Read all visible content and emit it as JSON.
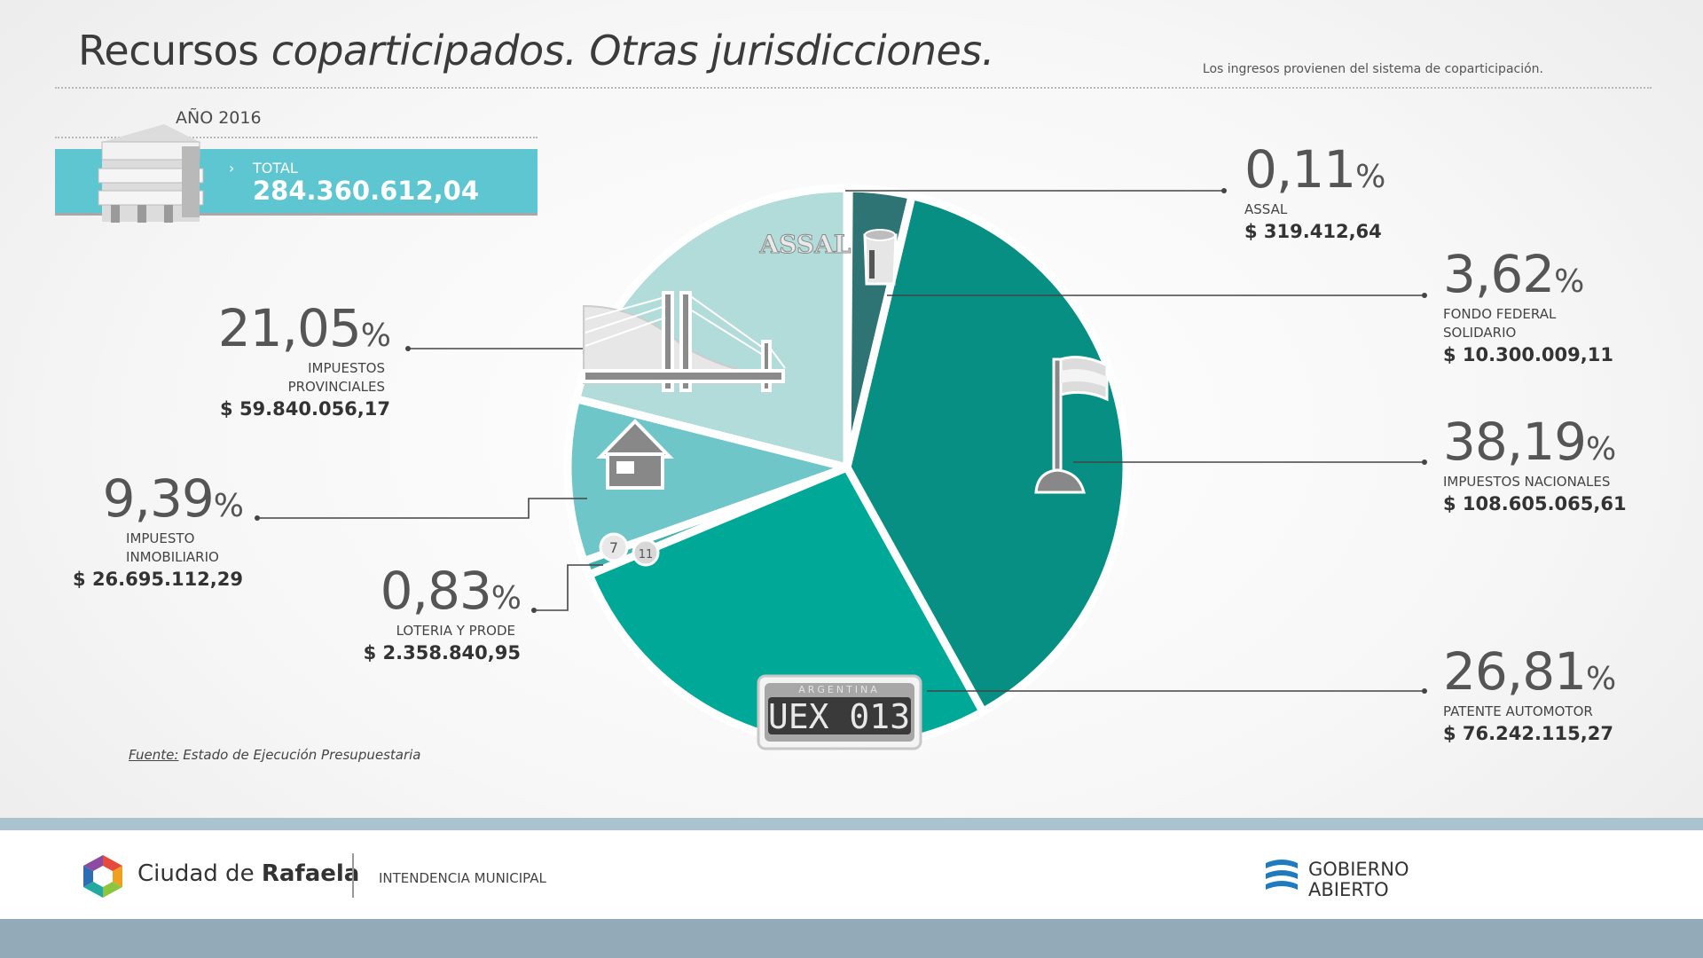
{
  "header": {
    "title_plain": "Recursos ",
    "title_italic": "coparticipados. Otras jurisdicciones.",
    "subtitle": "Los ingresos provienen del sistema de coparticipación."
  },
  "summary": {
    "year": "AÑO 2016",
    "total_label": "TOTAL",
    "total_value": "284.360.612,04"
  },
  "chart_data": {
    "type": "pie",
    "slices": [
      {
        "label": "ASSAL",
        "percent": 0.11,
        "percent_text": "0,11",
        "amount": "$ 319.412,64",
        "color": "#2e4a4f"
      },
      {
        "label": "FONDO FEDERAL SOLIDARIO",
        "percent": 3.62,
        "percent_text": "3,62",
        "amount": "$ 10.300.009,11",
        "color": "#2f7474"
      },
      {
        "label": "IMPUESTOS NACIONALES",
        "percent": 38.19,
        "percent_text": "38,19",
        "amount": "$ 108.605.065,61",
        "color": "#068f82"
      },
      {
        "label": "PATENTE AUTOMOTOR",
        "percent": 26.81,
        "percent_text": "26,81",
        "amount": "$ 76.242.115,27",
        "color": "#00a898"
      },
      {
        "label": "LOTERIA Y PRODE",
        "percent": 0.83,
        "percent_text": "0,83",
        "amount": "$ 2.358.840,95",
        "color": "#3fb3ae"
      },
      {
        "label": "IMPUESTO INMOBILIARIO",
        "percent": 9.39,
        "percent_text": "9,39",
        "amount": "$ 26.695.112,29",
        "color": "#6ec6c9"
      },
      {
        "label": "IMPUESTOS PROVINCIALES",
        "percent": 21.05,
        "percent_text": "21,05",
        "amount": "$ 59.840.056,17",
        "color": "#b1dcda"
      }
    ]
  },
  "labels": {
    "assal": {
      "pct": "0,11",
      "cat": "ASSAL",
      "amt": "$ 319.412,64"
    },
    "ffs": {
      "pct": "3,62",
      "cat1": "FONDO FEDERAL",
      "cat2": "SOLIDARIO",
      "amt": "$ 10.300.009,11"
    },
    "nac": {
      "pct": "38,19",
      "cat": "IMPUESTOS NACIONALES",
      "amt": "$ 108.605.065,61"
    },
    "pat": {
      "pct": "26,81",
      "cat": "PATENTE AUTOMOTOR",
      "amt": "$ 76.242.115,27"
    },
    "lot": {
      "pct": "0,83",
      "cat": "LOTERIA Y PRODE",
      "amt": "$ 2.358.840,95"
    },
    "inm": {
      "pct": "9,39",
      "cat1": "IMPUESTO",
      "cat2": "INMOBILIARIO",
      "amt": "$ 26.695.112,29"
    },
    "prov": {
      "pct": "21,05",
      "cat1": "IMPUESTOS",
      "cat2": "PROVINCIALES",
      "amt": "$ 59.840.056,17"
    },
    "percent_sign": "%"
  },
  "icons": {
    "assal_text": "ASSAL",
    "plate_country": "ARGENTINA",
    "plate_number": "UEX 013",
    "ball1": "7",
    "ball2": "11"
  },
  "source": {
    "prefix": "Fuente:",
    "text": " Estado de Ejecución Presupuestaria"
  },
  "footer": {
    "city_plain": "Ciudad de ",
    "city_bold": "Rafaela",
    "intendencia": "INTENDENCIA MUNICIPAL",
    "gob_line1": "GOBIERNO",
    "gob_line2": "ABIERTO"
  }
}
